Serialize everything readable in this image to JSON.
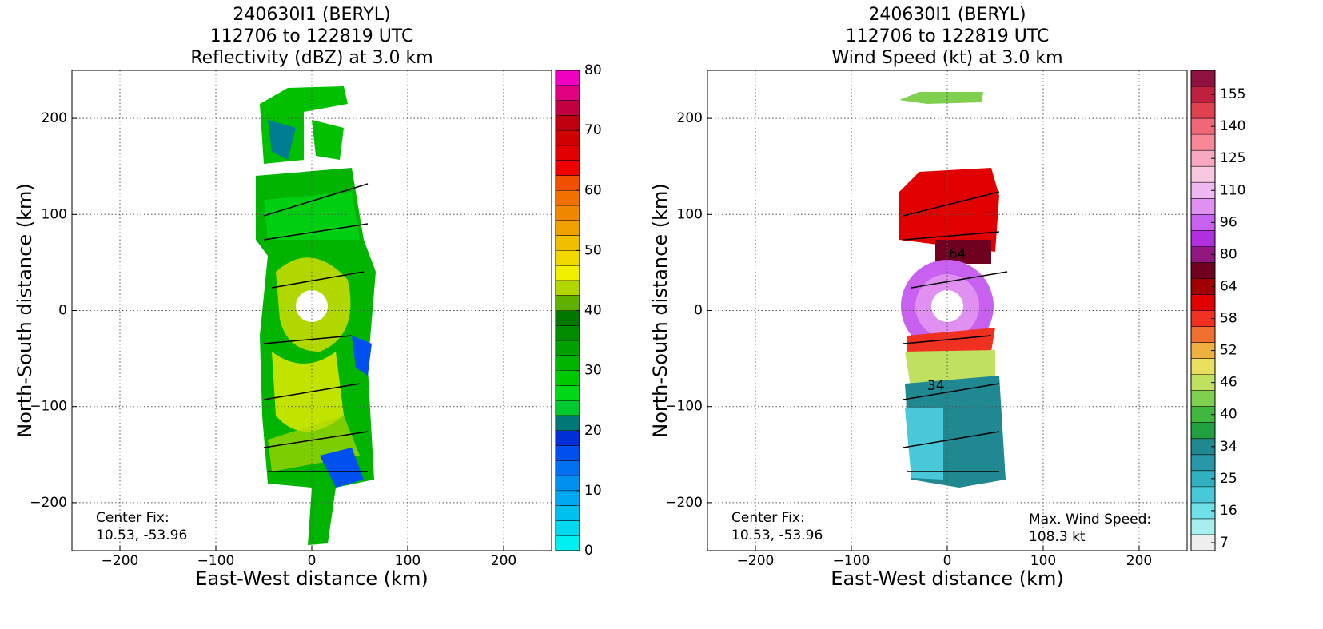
{
  "chart_data": [
    {
      "type": "contourf",
      "title": [
        "240630I1 (BERYL)",
        "112706 to 122819 UTC",
        "Reflectivity (dBZ) at 3.0 km"
      ],
      "xlabel": "East-West distance (km)",
      "ylabel": "North-South distance (km)",
      "xlim": [
        -250,
        250
      ],
      "ylim": [
        -250,
        250
      ],
      "xticks": [
        {
          "value": -200,
          "label": "−200"
        },
        {
          "value": -100,
          "label": "−100"
        },
        0,
        100,
        200
      ],
      "yticks": [
        200,
        100,
        0,
        {
          "value": -100,
          "label": "−100"
        },
        {
          "value": -200,
          "label": "−200"
        }
      ],
      "grid": true,
      "annotations": [
        "Center Fix:",
        "10.53, -53.96"
      ],
      "colorbar": {
        "clim": [
          0,
          80
        ],
        "cticks": [
          0,
          10,
          20,
          30,
          40,
          50,
          60,
          70,
          80
        ],
        "colors": [
          "#00f0f0",
          "#00d8f0",
          "#00c0f0",
          "#00a8f0",
          "#0090f0",
          "#0070f0",
          "#0050f0",
          "#0030d8",
          "#007878",
          "#00c830",
          "#00d818",
          "#00c800",
          "#00b400",
          "#00a000",
          "#008c00",
          "#007800",
          "#60b000",
          "#b0d800",
          "#f0f000",
          "#f0d800",
          "#f0c000",
          "#f0a000",
          "#f08800",
          "#f07000",
          "#f05000",
          "#f00000",
          "#e00000",
          "#d00000",
          "#c00010",
          "#c00040",
          "#e00080",
          "#f000c0"
        ]
      }
    },
    {
      "type": "contourf",
      "title": [
        "240630I1 (BERYL)",
        "112706 to 122819 UTC",
        "Wind Speed (kt) at 3.0 km"
      ],
      "xlabel": "East-West distance (km)",
      "ylabel": "North-South distance (km)",
      "xlim": [
        -250,
        250
      ],
      "ylim": [
        -250,
        250
      ],
      "xticks": [
        {
          "value": -200,
          "label": "−200"
        },
        {
          "value": -100,
          "label": "−100"
        },
        0,
        100,
        200
      ],
      "yticks": [
        200,
        100,
        0,
        {
          "value": -100,
          "label": "−100"
        },
        {
          "value": -200,
          "label": "−200"
        }
      ],
      "grid": true,
      "annotations": [
        "Center Fix:",
        "10.53, -53.96",
        "Max. Wind Speed:",
        "108.3 kt",
        "64",
        "34"
      ],
      "colorbar": {
        "levels": [
          7,
          12,
          16,
          20,
          25,
          30,
          34,
          37,
          40,
          43,
          46,
          49,
          52,
          55,
          58,
          61,
          64,
          72,
          80,
          88,
          96,
          103,
          110,
          118,
          125,
          133,
          140,
          148,
          155
        ],
        "cticks": [
          7,
          16,
          25,
          34,
          40,
          46,
          52,
          58,
          64,
          80,
          96,
          110,
          125,
          140,
          155
        ],
        "colors": [
          "#eeeeee",
          "#a8f0f0",
          "#70e0e8",
          "#48c8d8",
          "#30b0c0",
          "#2898a8",
          "#208890",
          "#20a040",
          "#40b840",
          "#80d050",
          "#c0e060",
          "#e8e060",
          "#f0b040",
          "#f07030",
          "#f03020",
          "#e00000",
          "#a00000",
          "#700020",
          "#901880",
          "#b030e0",
          "#c860f0",
          "#e090f0",
          "#f0b8f0",
          "#f8c8e0",
          "#f8a8c0",
          "#f88898",
          "#f06878",
          "#e04050",
          "#c02040",
          "#901040"
        ]
      }
    }
  ]
}
